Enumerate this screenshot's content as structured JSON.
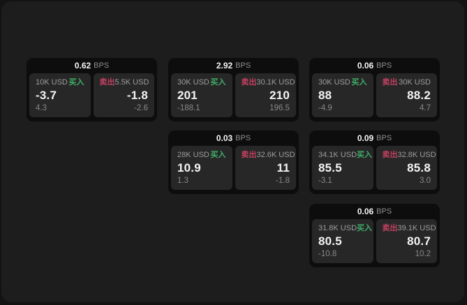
{
  "labels": {
    "bps": "BPS",
    "buy": "买入",
    "sell": "卖出"
  },
  "colors": {
    "buy_green": "#3fae66",
    "sell_red": "#c2405f",
    "window_bg": "#1d1d1e",
    "card_bg": "#0d0d0d",
    "panel_bg": "#272728"
  },
  "cards": [
    {
      "bps": "0.62",
      "buy": {
        "amount": "10K USD",
        "value": "-3.7",
        "delta": "4.3"
      },
      "sell": {
        "amount": "5.5K USD",
        "value": "-1.8",
        "delta": "-2.6"
      }
    },
    {
      "bps": "2.92",
      "buy": {
        "amount": "30K USD",
        "value": "201",
        "delta": "-188.1"
      },
      "sell": {
        "amount": "30.1K USD",
        "value": "210",
        "delta": "196.5"
      }
    },
    {
      "bps": "0.06",
      "buy": {
        "amount": "30K USD",
        "value": "88",
        "delta": "-4.9"
      },
      "sell": {
        "amount": "30K USD",
        "value": "88.2",
        "delta": "4.7"
      }
    },
    {
      "bps": "0.03",
      "buy": {
        "amount": "28K USD",
        "value": "10.9",
        "delta": "1.3"
      },
      "sell": {
        "amount": "32.6K USD",
        "value": "11",
        "delta": "-1.8"
      }
    },
    {
      "bps": "0.09",
      "buy": {
        "amount": "34.1K USD",
        "value": "85.5",
        "delta": "-3.1"
      },
      "sell": {
        "amount": "32.8K USD",
        "value": "85.8",
        "delta": "3.0"
      }
    },
    {
      "bps": "0.06",
      "buy": {
        "amount": "31.8K USD",
        "value": "80.5",
        "delta": "-10.8"
      },
      "sell": {
        "amount": "39.1K USD",
        "value": "80.7",
        "delta": "10.2"
      }
    }
  ]
}
